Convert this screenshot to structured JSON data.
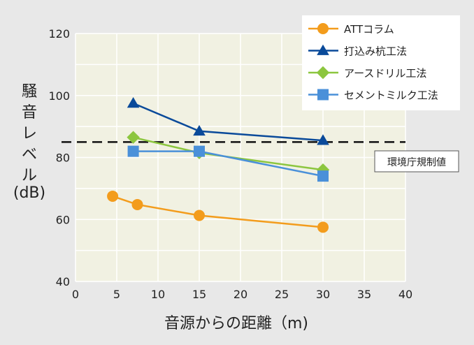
{
  "chart_data": {
    "type": "line",
    "xlabel": "音源からの距離（m)",
    "ylabel_lines": [
      "騒",
      "音",
      "レ",
      "ベ",
      "ル",
      "(dB)"
    ],
    "xlim": [
      0,
      40
    ],
    "ylim": [
      40,
      120
    ],
    "xticks": [
      "0",
      "5",
      "10",
      "15",
      "20",
      "25",
      "30",
      "35",
      "40"
    ],
    "yticks": [
      "40",
      "60",
      "80",
      "100",
      "120"
    ],
    "grid": true,
    "legend_position": "top-right",
    "reference_line": {
      "value": 85,
      "label": "環境庁規制値",
      "style": "dashed"
    },
    "series": [
      {
        "name": "ATTコラム",
        "color": "#f39c1c",
        "marker": "circle",
        "points": [
          [
            4.5,
            67.5
          ],
          [
            7.5,
            64.8
          ],
          [
            15,
            61.3
          ],
          [
            30,
            57.5
          ]
        ]
      },
      {
        "name": "打込み杭工法",
        "color": "#0a4a9a",
        "marker": "triangle",
        "points": [
          [
            7,
            97.5
          ],
          [
            15,
            88.5
          ],
          [
            30,
            85.5
          ]
        ]
      },
      {
        "name": "アースドリル工法",
        "color": "#8cc63f",
        "marker": "diamond",
        "points": [
          [
            7,
            86.5
          ],
          [
            15,
            81.5
          ],
          [
            30,
            76
          ]
        ]
      },
      {
        "name": "セメントミルク工法",
        "color": "#4a90d9",
        "marker": "square",
        "points": [
          [
            7,
            82
          ],
          [
            15,
            82
          ],
          [
            30,
            74
          ]
        ]
      }
    ]
  }
}
